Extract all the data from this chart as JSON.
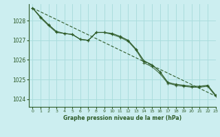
{
  "title": "Graphe pression niveau de la mer (hPa)",
  "background_color": "#cceef0",
  "grid_color": "#aadddd",
  "line_color": "#2d5a27",
  "xlim": [
    -0.5,
    23
  ],
  "ylim": [
    1023.6,
    1028.85
  ],
  "yticks": [
    1024,
    1025,
    1026,
    1027,
    1028
  ],
  "xticks": [
    0,
    1,
    2,
    3,
    4,
    5,
    6,
    7,
    8,
    9,
    10,
    11,
    12,
    13,
    14,
    15,
    16,
    17,
    18,
    19,
    20,
    21,
    22,
    23
  ],
  "curve1": {
    "x": [
      0,
      1,
      2,
      3,
      4,
      5,
      6,
      7,
      8,
      9,
      10,
      11,
      12,
      13,
      14,
      15,
      16,
      17,
      18,
      19,
      20,
      21,
      22,
      23
    ],
    "y": [
      1028.65,
      1028.2,
      1027.8,
      1027.45,
      1027.35,
      1027.3,
      1027.05,
      1027.0,
      1027.4,
      1027.4,
      1027.35,
      1027.2,
      1027.0,
      1026.55,
      1025.95,
      1025.75,
      1025.4,
      1024.85,
      1024.75,
      1024.7,
      1024.65,
      1024.65,
      1024.7,
      1024.2
    ]
  },
  "curve2": {
    "x": [
      0,
      1,
      2,
      3,
      4,
      5,
      6,
      7,
      8,
      9,
      10,
      11,
      12,
      13,
      14,
      15,
      16,
      17,
      18,
      19,
      20,
      21,
      22,
      23
    ],
    "y": [
      1028.65,
      1028.15,
      1027.75,
      1027.4,
      1027.35,
      1027.3,
      1027.05,
      1027.0,
      1027.4,
      1027.4,
      1027.3,
      1027.15,
      1026.95,
      1026.5,
      1025.85,
      1025.65,
      1025.3,
      1024.8,
      1024.7,
      1024.65,
      1024.6,
      1024.6,
      1024.65,
      1024.15
    ]
  },
  "straight": {
    "x": [
      0,
      23
    ],
    "y": [
      1028.65,
      1024.15
    ]
  }
}
